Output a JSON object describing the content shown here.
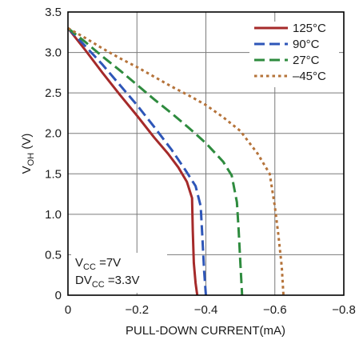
{
  "chart_data": {
    "type": "line",
    "ylabel_main": "V",
    "ylabel_sub": "OH",
    "ylabel_suffix": " (V)",
    "xlabel": "PULL-DOWN CURRENT(mA)",
    "xlim": [
      0,
      -0.8
    ],
    "ylim": [
      0,
      3.5
    ],
    "x_ticks": [
      {
        "value": 0,
        "label": "0"
      },
      {
        "value": -0.2,
        "label": "−0.2"
      },
      {
        "value": -0.4,
        "label": "−0.4"
      },
      {
        "value": -0.6,
        "label": "−0.6"
      },
      {
        "value": -0.8,
        "label": "−0.8"
      }
    ],
    "y_ticks": [
      {
        "value": 0,
        "label": "0"
      },
      {
        "value": 0.5,
        "label": "0.5"
      },
      {
        "value": 1.0,
        "label": "1.0"
      },
      {
        "value": 1.5,
        "label": "1.5"
      },
      {
        "value": 2.0,
        "label": "2.0"
      },
      {
        "value": 2.5,
        "label": "2.5"
      },
      {
        "value": 3.0,
        "label": "3.0"
      },
      {
        "value": 3.5,
        "label": "3.5"
      }
    ],
    "grid": true,
    "legend_position": "top-right",
    "series": [
      {
        "name": "125°C",
        "color": "#a52a2a",
        "style": "solid",
        "x": [
          0,
          -0.05,
          -0.1,
          -0.15,
          -0.2,
          -0.25,
          -0.29,
          -0.32,
          -0.345,
          -0.36,
          -0.362,
          -0.365,
          -0.37,
          -0.375
        ],
        "y": [
          3.3,
          3.03,
          2.75,
          2.48,
          2.22,
          1.95,
          1.75,
          1.58,
          1.4,
          1.2,
          0.8,
          0.4,
          0.15,
          0.0
        ]
      },
      {
        "name": "90°C",
        "color": "#2e56b8",
        "style": "dashed",
        "x": [
          0,
          -0.05,
          -0.1,
          -0.15,
          -0.2,
          -0.25,
          -0.3,
          -0.34,
          -0.37,
          -0.385,
          -0.39,
          -0.395,
          -0.4
        ],
        "y": [
          3.3,
          3.08,
          2.85,
          2.6,
          2.35,
          2.08,
          1.8,
          1.55,
          1.35,
          1.1,
          0.7,
          0.3,
          0.0
        ]
      },
      {
        "name": "27°C",
        "color": "#2e8b3e",
        "style": "dashed",
        "x": [
          0,
          -0.05,
          -0.1,
          -0.15,
          -0.2,
          -0.25,
          -0.3,
          -0.35,
          -0.4,
          -0.45,
          -0.475,
          -0.49,
          -0.495,
          -0.5,
          -0.505
        ],
        "y": [
          3.3,
          3.13,
          2.95,
          2.78,
          2.6,
          2.42,
          2.25,
          2.07,
          1.88,
          1.65,
          1.48,
          1.15,
          0.8,
          0.4,
          0.0
        ]
      },
      {
        "name": "–45°C",
        "color": "#b5733a",
        "style": "dotted",
        "x": [
          0,
          -0.05,
          -0.1,
          -0.15,
          -0.2,
          -0.25,
          -0.3,
          -0.35,
          -0.4,
          -0.45,
          -0.5,
          -0.55,
          -0.585,
          -0.6,
          -0.61,
          -0.62,
          -0.625
        ],
        "y": [
          3.3,
          3.18,
          3.05,
          2.93,
          2.82,
          2.7,
          2.58,
          2.47,
          2.35,
          2.2,
          2.03,
          1.75,
          1.5,
          1.1,
          0.75,
          0.35,
          0.0
        ]
      }
    ],
    "annotations": [
      {
        "main": "V",
        "sub": "CC",
        "rest": " =7V"
      },
      {
        "main": "DV",
        "sub": "CC",
        "rest": " =3.3V"
      }
    ]
  }
}
